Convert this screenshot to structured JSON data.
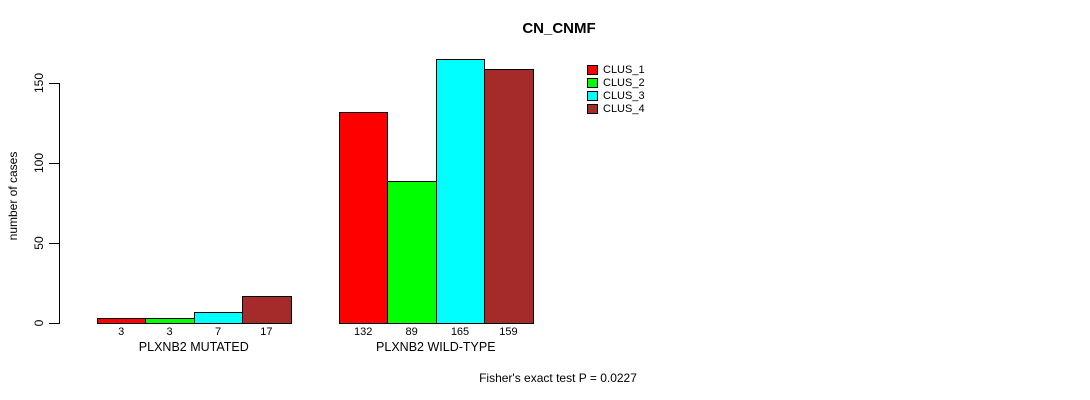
{
  "chart_data": {
    "type": "bar",
    "title": "CN_CNMF",
    "xlabel": "",
    "ylabel": "number of cases",
    "categories": [
      "PLXNB2 MUTATED",
      "PLXNB2 WILD-TYPE"
    ],
    "series": [
      {
        "name": "CLUS_1",
        "color": "#FF0000",
        "values": [
          3,
          132
        ]
      },
      {
        "name": "CLUS_2",
        "color": "#00FF00",
        "values": [
          3,
          89
        ]
      },
      {
        "name": "CLUS_3",
        "color": "#00FFFF",
        "values": [
          7,
          165
        ]
      },
      {
        "name": "CLUS_4",
        "color": "#A52A2A",
        "values": [
          17,
          159
        ]
      }
    ],
    "bar_value_labels": [
      [
        3,
        3,
        7,
        17
      ],
      [
        132,
        89,
        165,
        159
      ]
    ],
    "yticks": [
      0,
      50,
      100,
      150
    ],
    "ylim": [
      0,
      168
    ],
    "grid": false,
    "legend_position": "top-right",
    "legend_entries": [
      "CLUS_1",
      "CLUS_2",
      "CLUS_3",
      "CLUS_4"
    ],
    "annotation": "Fisher's exact test P = 0.0227"
  }
}
